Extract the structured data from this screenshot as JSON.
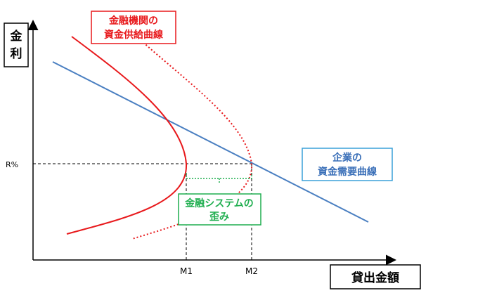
{
  "axes": {
    "y_label": "金利",
    "x_label": "貸出金額",
    "r_label": "R%",
    "m1_label": "M1",
    "m2_label": "M2"
  },
  "supply_box": {
    "line1": "金融機関の",
    "line2": "資金供給曲線"
  },
  "demand_box": {
    "line1": "企業の",
    "line2": "資金需要曲線"
  },
  "distortion_box": {
    "line1": "金融システムの",
    "line2": "歪み"
  },
  "colors": {
    "supply": "#e8191c",
    "demand": "#4a7fc1",
    "distortion": "#1fae4f",
    "axis": "#000000",
    "label_box_supply_border": "#e8191c",
    "label_box_demand_border": "#3aa0d8",
    "label_box_distortion_border": "#1fae4f"
  }
}
